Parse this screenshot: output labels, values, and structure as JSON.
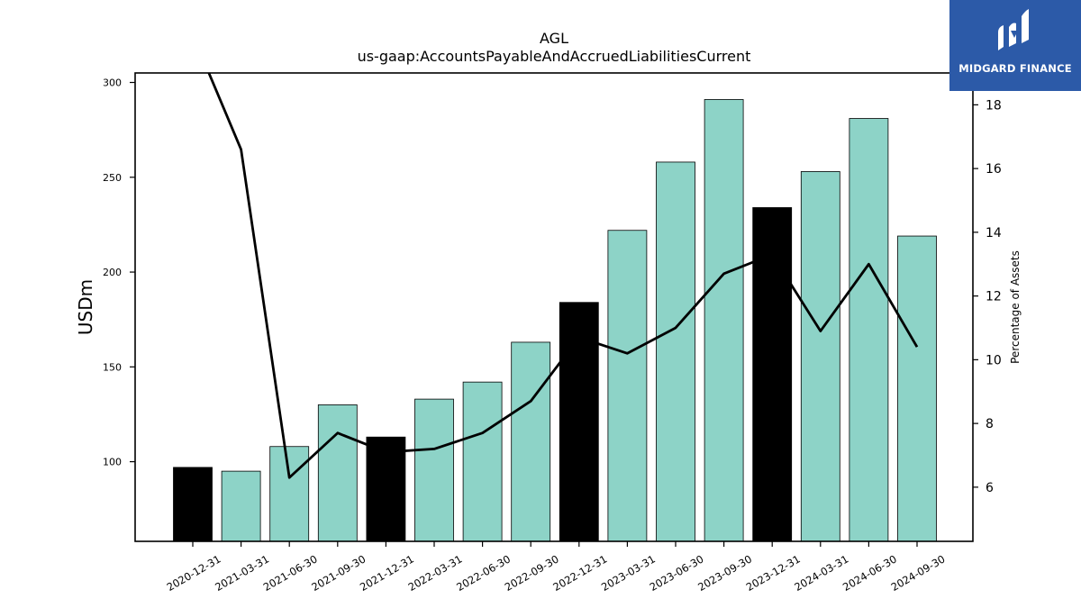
{
  "chart_data": {
    "type": "bar",
    "title": "AGL",
    "subtitle": "us-gaap:AccountsPayableAndAccruedLiabilitiesCurrent",
    "ylabel": "USDm",
    "y2label": "Percentage of Assets",
    "categories": [
      "2020-12-31",
      "2021-03-31",
      "2021-06-30",
      "2021-09-30",
      "2021-12-31",
      "2022-03-31",
      "2022-06-30",
      "2022-09-30",
      "2022-12-31",
      "2023-03-31",
      "2023-06-30",
      "2023-09-30",
      "2023-12-31",
      "2024-03-31",
      "2024-06-30",
      "2024-09-30"
    ],
    "values": [
      97,
      95,
      108,
      130,
      113,
      133,
      142,
      163,
      184,
      222,
      258,
      291,
      234,
      253,
      281,
      219
    ],
    "bar_colors": [
      "#000000",
      "#8dd3c7",
      "#8dd3c7",
      "#8dd3c7",
      "#000000",
      "#8dd3c7",
      "#8dd3c7",
      "#8dd3c7",
      "#000000",
      "#8dd3c7",
      "#8dd3c7",
      "#8dd3c7",
      "#000000",
      "#8dd3c7",
      "#8dd3c7",
      "#8dd3c7"
    ],
    "line_series": {
      "name": "",
      "axis": "right",
      "color": "#000000",
      "values": [
        20.2,
        16.6,
        6.3,
        7.7,
        7.1,
        7.2,
        7.7,
        8.7,
        10.7,
        10.2,
        11.0,
        12.7,
        13.3,
        10.9,
        13.0,
        10.4
      ]
    },
    "ylim": [
      58,
      305
    ],
    "yticks": [
      100,
      150,
      200,
      250,
      300
    ],
    "y2lim": [
      4.3,
      19.0
    ],
    "y2ticks": [
      6,
      8,
      10,
      12,
      14,
      16,
      18
    ],
    "grid": false,
    "legend": "none"
  },
  "logo": {
    "text": "MIDGARD FINANCE",
    "background": "#2c5aa8"
  }
}
